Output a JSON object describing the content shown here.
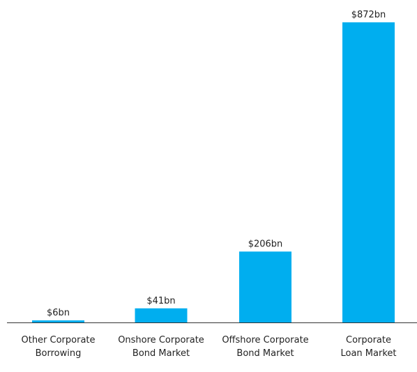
{
  "chart_data": {
    "type": "bar",
    "categories": [
      [
        "Other Corporate",
        "Borrowing"
      ],
      [
        "Onshore Corporate",
        "Bond Market"
      ],
      [
        "Offshore Corporate",
        "Bond Market"
      ],
      [
        "Corporate",
        "Loan Market"
      ]
    ],
    "values": [
      6,
      41,
      206,
      872
    ],
    "value_labels": [
      "$6bn",
      "$41bn",
      "$206bn",
      "$872bn"
    ],
    "title": "",
    "xlabel": "",
    "ylabel": "",
    "ylim": [
      0,
      872
    ],
    "grid": false,
    "legend": "none",
    "bar_color": "#00AEEF",
    "axis_color": "#333333"
  }
}
